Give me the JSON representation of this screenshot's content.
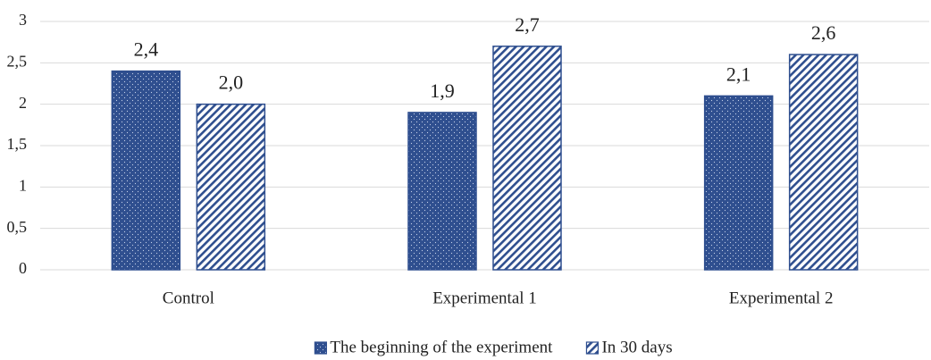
{
  "chart_data": {
    "type": "bar",
    "categories": [
      "Control",
      "Experimental 1",
      "Experimental 2"
    ],
    "series": [
      {
        "name": "The beginning of the experiment",
        "color": "#2f4f8f",
        "pattern": "dots",
        "values": [
          2.4,
          1.9,
          2.1
        ],
        "value_labels": [
          "2,4",
          "1,9",
          "2,1"
        ]
      },
      {
        "name": "In 30 days",
        "color": "#2f4f8f",
        "pattern": "hatch",
        "values": [
          2.0,
          2.7,
          2.6
        ],
        "value_labels": [
          "2,0",
          "2,7",
          "2,6"
        ]
      }
    ],
    "ylim": [
      0,
      3
    ],
    "yticks": [
      0,
      {
        "value": 0.5,
        "label": "0,5"
      },
      1,
      {
        "value": 1.5,
        "label": "1,5"
      },
      2,
      {
        "value": 2.5,
        "label": "2,5"
      },
      3
    ],
    "grid": true,
    "legend": "bottom"
  }
}
